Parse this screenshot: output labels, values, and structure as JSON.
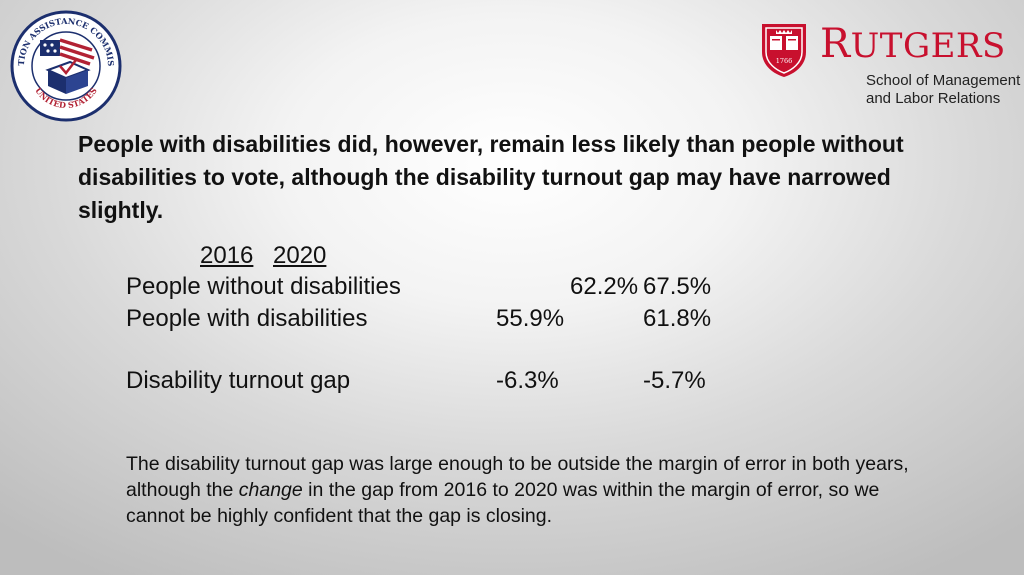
{
  "logos": {
    "eac": {
      "icon": "eac-seal-icon",
      "ring_text_top": "ELECTION ASSISTANCE COMMISSION",
      "ring_text_bottom": "UNITED STATES"
    },
    "rutgers": {
      "icon": "rutgers-shield-icon",
      "shield_year": "1766",
      "wordmark_initial": "R",
      "wordmark_rest": "UTGERS",
      "subtitle_line1": "School of Management",
      "subtitle_line2": "and Labor Relations",
      "color": "#c8102e"
    }
  },
  "headline": "People with disabilities did, however, remain less likely than people without disabilities to vote, although the disability turnout gap may have narrowed slightly.",
  "table": {
    "headers": [
      "2016",
      "2020"
    ],
    "rows": [
      {
        "label": "People without disabilities",
        "v2016": "62.2%",
        "v2020": "67.5%"
      },
      {
        "label": "People with disabilities",
        "v2016": "55.9%",
        "v2020": "61.8%"
      },
      {
        "label": "Disability turnout gap",
        "v2016": "-6.3%",
        "v2020": "-5.7%"
      }
    ]
  },
  "note": {
    "part1": "The disability turnout gap was large enough to be outside the margin of error in both years, although the ",
    "emphasis": "change",
    "part2": " in the gap from 2016 to 2020 was within the margin of error, so we cannot be highly confident that the gap is closing."
  }
}
